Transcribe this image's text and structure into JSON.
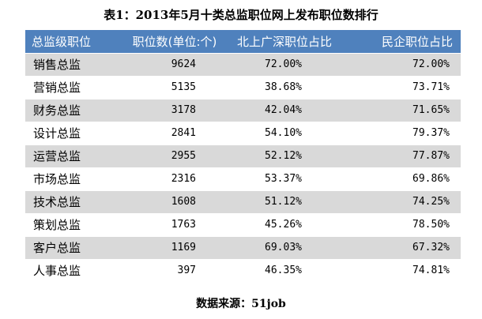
{
  "title": "表1：2013年5月十类总监职位网上发布职位数排行",
  "table": {
    "headers": [
      "总监级职位",
      "职位数(单位:个)",
      "北上广深职位占比",
      "民企职位占比"
    ],
    "rows": [
      {
        "category": "销售总监",
        "count": "9624",
        "tier1_share": "72.00%",
        "private_share": "72.00%"
      },
      {
        "category": "营销总监",
        "count": "5135",
        "tier1_share": "38.68%",
        "private_share": "73.71%"
      },
      {
        "category": "财务总监",
        "count": "3178",
        "tier1_share": "42.04%",
        "private_share": "71.65%"
      },
      {
        "category": "设计总监",
        "count": "2841",
        "tier1_share": "54.10%",
        "private_share": "79.37%"
      },
      {
        "category": "运营总监",
        "count": "2955",
        "tier1_share": "52.12%",
        "private_share": "77.87%"
      },
      {
        "category": "市场总监",
        "count": "2316",
        "tier1_share": "53.37%",
        "private_share": "69.86%"
      },
      {
        "category": "技术总监",
        "count": "1608",
        "tier1_share": "51.12%",
        "private_share": "74.25%"
      },
      {
        "category": "策划总监",
        "count": "1763",
        "tier1_share": "45.26%",
        "private_share": "78.50%"
      },
      {
        "category": "客户总监",
        "count": "1169",
        "tier1_share": "69.03%",
        "private_share": "67.32%"
      },
      {
        "category": "人事总监",
        "count": "397",
        "tier1_share": "46.35%",
        "private_share": "74.81%"
      }
    ]
  },
  "source": "数据来源：51job",
  "colors": {
    "header_bg": "#4f81bd",
    "header_text": "#ffffff",
    "row_alt_bg": "#d9d9d9",
    "row_bg": "#ffffff"
  }
}
